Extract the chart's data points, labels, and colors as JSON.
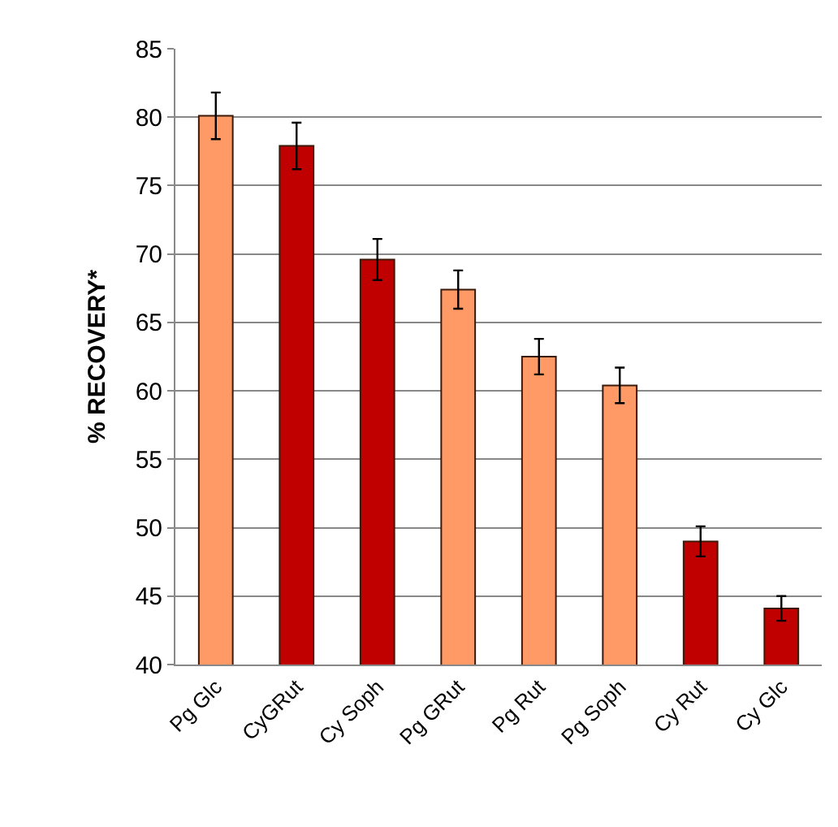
{
  "chart_data": {
    "type": "bar",
    "ylabel": "% RECOVERY*",
    "categories": [
      "Pg Glc",
      "CyGRut",
      "Cy Soph",
      "Pg GRut",
      "Pg Rut",
      "Pg Soph",
      "Cy Rut",
      "Cy Glc"
    ],
    "values": [
      80.1,
      77.9,
      69.6,
      67.4,
      62.5,
      60.4,
      49.0,
      44.1
    ],
    "errors": [
      1.7,
      1.7,
      1.5,
      1.4,
      1.3,
      1.3,
      1.1,
      0.9
    ],
    "colors": [
      "#ff9966",
      "#c00000",
      "#c00000",
      "#ff9966",
      "#ff9966",
      "#ff9966",
      "#c00000",
      "#c00000"
    ],
    "ylim": [
      40,
      85
    ],
    "yticks": [
      40,
      45,
      50,
      55,
      60,
      65,
      70,
      75,
      80,
      85
    ],
    "grid": "y"
  }
}
